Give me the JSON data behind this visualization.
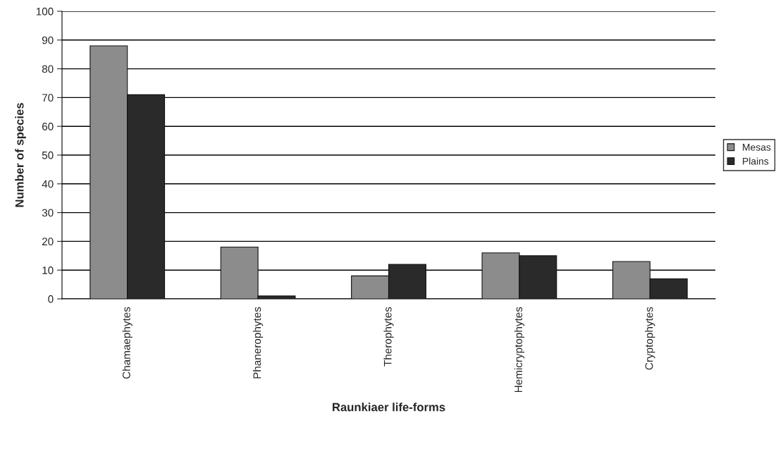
{
  "chart_data": {
    "type": "bar",
    "xlabel": "Raunkiaer life-forms",
    "ylabel": "Number of species",
    "categories": [
      "Chamaephytes",
      "Phanerophytes",
      "Therophytes",
      "Hemicryptophytes",
      "Cryptophytes"
    ],
    "series": [
      {
        "name": "Mesas",
        "color": "#8c8c8c",
        "values": [
          88,
          18,
          8,
          16,
          13
        ]
      },
      {
        "name": "Plains",
        "color": "#2a2a2a",
        "values": [
          71,
          1,
          12,
          15,
          7
        ]
      }
    ],
    "ylim": [
      0,
      100
    ],
    "yticks": [
      0,
      10,
      20,
      30,
      40,
      50,
      60,
      70,
      80,
      90,
      100
    ],
    "grid": "y",
    "legend": "right"
  }
}
